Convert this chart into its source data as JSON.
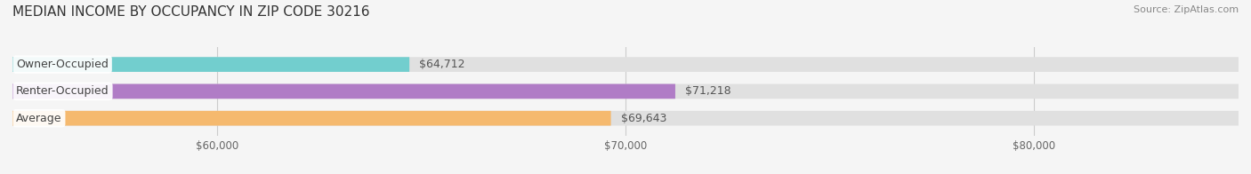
{
  "title": "MEDIAN INCOME BY OCCUPANCY IN ZIP CODE 30216",
  "source": "Source: ZipAtlas.com",
  "categories": [
    "Owner-Occupied",
    "Renter-Occupied",
    "Average"
  ],
  "values": [
    64712,
    71218,
    69643
  ],
  "bar_colors": [
    "#72cece",
    "#b07cc6",
    "#f5b96e"
  ],
  "bar_bg_color": "#e0e0e0",
  "value_labels": [
    "$64,712",
    "$71,218",
    "$69,643"
  ],
  "xmin": 55000,
  "xmax": 85000,
  "xticks": [
    60000,
    70000,
    80000
  ],
  "xtick_labels": [
    "$60,000",
    "$70,000",
    "$80,000"
  ],
  "title_fontsize": 11,
  "label_fontsize": 9,
  "tick_fontsize": 8.5,
  "source_fontsize": 8,
  "bar_height": 0.55,
  "background_color": "#f5f5f5"
}
